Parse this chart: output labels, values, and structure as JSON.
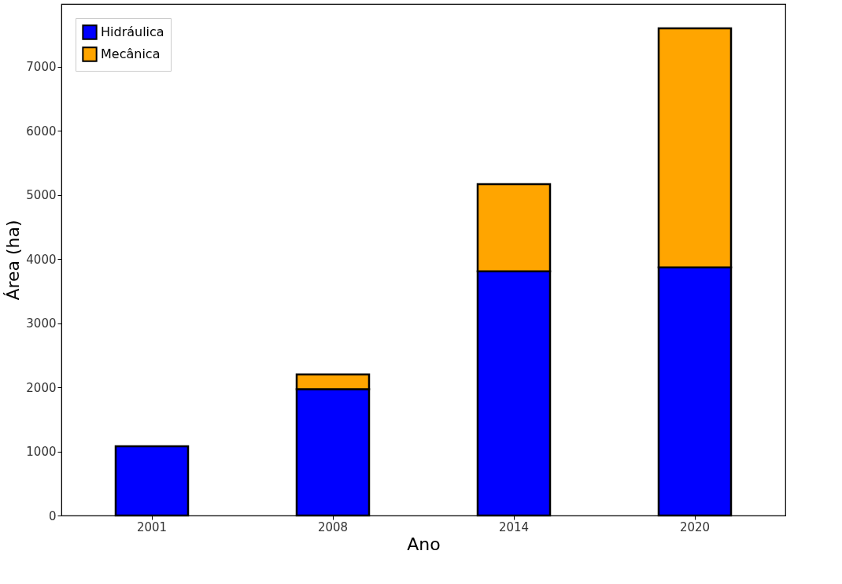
{
  "chart_data": {
    "type": "bar",
    "stacked": true,
    "xlabel": "Ano",
    "ylabel": "Área (ha)",
    "categories": [
      "2001",
      "2008",
      "2014",
      "2020"
    ],
    "series": [
      {
        "name": "Hidráulica",
        "color": "#0000ff",
        "values": [
          1080,
          1970,
          3810,
          3870
        ]
      },
      {
        "name": "Mecânica",
        "color": "#ffa500",
        "values": [
          null,
          230,
          1360,
          3730
        ]
      }
    ],
    "ylim": [
      0,
      7980
    ],
    "yticks": [
      0,
      1000,
      2000,
      3000,
      4000,
      5000,
      6000,
      7000
    ],
    "grid": false,
    "legend": "top left"
  }
}
